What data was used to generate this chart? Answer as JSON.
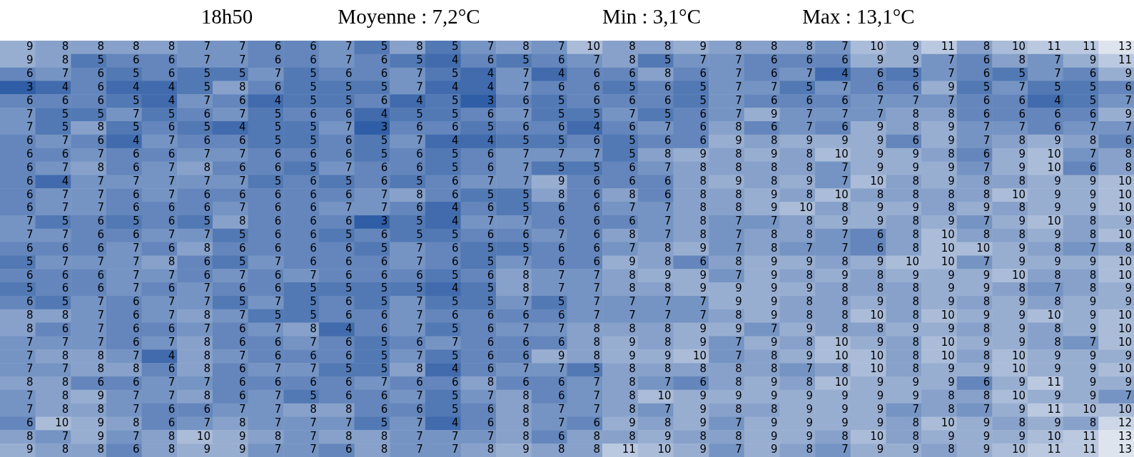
{
  "chart_data": {
    "type": "heatmap",
    "title": "18h50",
    "data_labels": true,
    "annotations": [
      "Moyenne : 7,2°C",
      "Min : 3,1°C",
      "Max : 13,1°C"
    ],
    "categories": [
      null,
      null,
      null,
      null,
      null,
      null,
      null,
      null,
      null,
      null,
      null,
      null,
      null,
      null,
      null,
      null,
      null,
      null,
      null,
      null,
      null,
      null,
      null,
      null,
      null,
      null,
      null,
      null,
      null,
      null,
      null,
      null
    ],
    "y_categories": [
      null,
      null,
      null,
      null,
      null,
      null,
      null,
      null,
      null,
      null,
      null,
      null,
      null,
      null,
      null,
      null,
      null,
      null,
      null,
      null,
      null,
      null,
      null,
      null,
      null,
      null,
      null,
      null,
      null,
      null,
      null
    ],
    "cells": [
      [
        9,
        8,
        8,
        8,
        8,
        7,
        7,
        6,
        6,
        7,
        5,
        8,
        5,
        7,
        8,
        7,
        10,
        8,
        8,
        9,
        8,
        8,
        8,
        7,
        10,
        9,
        11,
        8,
        10,
        11,
        11,
        13
      ],
      [
        9,
        8,
        5,
        6,
        6,
        7,
        7,
        6,
        6,
        7,
        6,
        5,
        4,
        6,
        5,
        6,
        7,
        8,
        5,
        7,
        7,
        6,
        6,
        6,
        9,
        9,
        7,
        6,
        8,
        7,
        9,
        11
      ],
      [
        6,
        7,
        6,
        5,
        6,
        5,
        5,
        7,
        5,
        6,
        6,
        7,
        5,
        4,
        7,
        4,
        6,
        6,
        8,
        6,
        7,
        6,
        7,
        4,
        6,
        5,
        7,
        6,
        5,
        7,
        6,
        9
      ],
      [
        3,
        4,
        6,
        4,
        4,
        5,
        8,
        6,
        5,
        5,
        5,
        7,
        4,
        4,
        7,
        6,
        6,
        5,
        6,
        5,
        7,
        7,
        5,
        7,
        6,
        6,
        9,
        5,
        7,
        5,
        5,
        6
      ],
      [
        6,
        6,
        6,
        5,
        4,
        7,
        6,
        4,
        5,
        5,
        6,
        4,
        5,
        3,
        6,
        5,
        6,
        6,
        6,
        5,
        7,
        6,
        6,
        6,
        7,
        7,
        7,
        6,
        6,
        4,
        5,
        7
      ],
      [
        7,
        5,
        5,
        7,
        5,
        6,
        7,
        5,
        6,
        6,
        4,
        5,
        5,
        6,
        7,
        5,
        5,
        7,
        5,
        6,
        7,
        9,
        7,
        7,
        7,
        8,
        8,
        6,
        6,
        6,
        6,
        9
      ],
      [
        7,
        5,
        8,
        5,
        6,
        5,
        4,
        5,
        5,
        7,
        3,
        6,
        6,
        5,
        6,
        6,
        4,
        6,
        7,
        6,
        8,
        6,
        7,
        6,
        9,
        8,
        9,
        7,
        7,
        6,
        7,
        7
      ],
      [
        6,
        7,
        6,
        4,
        7,
        6,
        6,
        5,
        5,
        6,
        5,
        7,
        4,
        4,
        5,
        5,
        6,
        5,
        6,
        6,
        9,
        8,
        9,
        9,
        9,
        6,
        9,
        7,
        8,
        9,
        8,
        6
      ],
      [
        6,
        6,
        7,
        6,
        6,
        7,
        7,
        6,
        6,
        6,
        5,
        6,
        5,
        6,
        7,
        7,
        7,
        5,
        8,
        9,
        8,
        9,
        8,
        10,
        9,
        9,
        8,
        6,
        9,
        10,
        7,
        8
      ],
      [
        6,
        7,
        8,
        6,
        7,
        8,
        6,
        6,
        5,
        7,
        6,
        6,
        5,
        6,
        7,
        5,
        5,
        6,
        7,
        8,
        8,
        8,
        8,
        7,
        9,
        9,
        9,
        7,
        9,
        10,
        6,
        8
      ],
      [
        6,
        4,
        7,
        7,
        7,
        7,
        7,
        5,
        6,
        5,
        6,
        5,
        6,
        7,
        7,
        9,
        6,
        6,
        6,
        8,
        9,
        8,
        9,
        7,
        10,
        8,
        9,
        8,
        8,
        9,
        9,
        10
      ],
      [
        6,
        7,
        7,
        6,
        7,
        6,
        6,
        6,
        6,
        6,
        7,
        8,
        6,
        5,
        5,
        8,
        6,
        8,
        6,
        8,
        8,
        9,
        8,
        10,
        8,
        8,
        8,
        8,
        10,
        9,
        9,
        10
      ],
      [
        6,
        7,
        7,
        6,
        6,
        6,
        7,
        6,
        6,
        7,
        7,
        6,
        4,
        6,
        5,
        6,
        6,
        7,
        7,
        8,
        8,
        9,
        10,
        8,
        9,
        9,
        8,
        9,
        8,
        9,
        9,
        10
      ],
      [
        7,
        5,
        6,
        5,
        6,
        5,
        8,
        6,
        6,
        6,
        3,
        5,
        4,
        7,
        7,
        6,
        6,
        6,
        7,
        8,
        7,
        7,
        8,
        9,
        9,
        8,
        9,
        7,
        9,
        10,
        8,
        9
      ],
      [
        7,
        7,
        6,
        6,
        7,
        7,
        5,
        6,
        6,
        5,
        6,
        5,
        5,
        6,
        6,
        7,
        6,
        8,
        7,
        8,
        7,
        8,
        8,
        7,
        6,
        8,
        10,
        8,
        8,
        9,
        8,
        10
      ],
      [
        6,
        6,
        6,
        7,
        6,
        8,
        6,
        6,
        6,
        6,
        5,
        7,
        6,
        5,
        5,
        6,
        6,
        7,
        8,
        9,
        7,
        8,
        7,
        7,
        6,
        8,
        10,
        10,
        9,
        8,
        7,
        8
      ],
      [
        5,
        7,
        7,
        7,
        8,
        6,
        5,
        7,
        6,
        6,
        6,
        7,
        6,
        5,
        7,
        6,
        6,
        9,
        8,
        6,
        8,
        9,
        9,
        8,
        9,
        10,
        10,
        7,
        9,
        9,
        9,
        10
      ],
      [
        6,
        6,
        6,
        7,
        7,
        6,
        7,
        6,
        7,
        6,
        6,
        6,
        5,
        6,
        8,
        7,
        7,
        8,
        9,
        9,
        7,
        9,
        8,
        9,
        8,
        9,
        9,
        9,
        10,
        8,
        8,
        10
      ],
      [
        5,
        6,
        6,
        7,
        6,
        7,
        6,
        6,
        5,
        5,
        5,
        5,
        4,
        5,
        8,
        7,
        7,
        8,
        8,
        9,
        9,
        9,
        9,
        8,
        8,
        8,
        9,
        9,
        8,
        7,
        8,
        9
      ],
      [
        6,
        5,
        7,
        6,
        7,
        7,
        5,
        7,
        5,
        6,
        5,
        7,
        5,
        5,
        7,
        5,
        7,
        7,
        7,
        7,
        9,
        9,
        8,
        8,
        9,
        8,
        9,
        8,
        9,
        8,
        9,
        9
      ],
      [
        8,
        8,
        7,
        6,
        7,
        8,
        7,
        5,
        5,
        6,
        6,
        7,
        6,
        6,
        6,
        6,
        7,
        7,
        7,
        7,
        8,
        9,
        8,
        8,
        10,
        8,
        10,
        9,
        9,
        10,
        9,
        10
      ],
      [
        8,
        6,
        7,
        6,
        6,
        7,
        6,
        7,
        8,
        4,
        6,
        7,
        5,
        6,
        7,
        7,
        8,
        8,
        8,
        9,
        9,
        7,
        9,
        8,
        8,
        9,
        9,
        8,
        9,
        8,
        9,
        10
      ],
      [
        7,
        7,
        7,
        6,
        7,
        8,
        6,
        6,
        7,
        6,
        5,
        6,
        7,
        6,
        6,
        6,
        8,
        9,
        8,
        9,
        7,
        9,
        8,
        10,
        9,
        8,
        10,
        9,
        9,
        8,
        7,
        10
      ],
      [
        7,
        8,
        8,
        7,
        4,
        8,
        7,
        6,
        6,
        6,
        5,
        7,
        5,
        6,
        6,
        9,
        8,
        9,
        9,
        10,
        7,
        8,
        9,
        10,
        10,
        8,
        10,
        8,
        10,
        9,
        9,
        9
      ],
      [
        7,
        7,
        8,
        8,
        6,
        8,
        6,
        7,
        7,
        5,
        5,
        8,
        4,
        6,
        7,
        7,
        5,
        8,
        8,
        8,
        8,
        8,
        7,
        8,
        10,
        8,
        9,
        9,
        10,
        9,
        9,
        10
      ],
      [
        8,
        8,
        6,
        6,
        7,
        7,
        6,
        6,
        6,
        6,
        7,
        6,
        6,
        8,
        6,
        6,
        7,
        8,
        7,
        6,
        8,
        9,
        8,
        10,
        9,
        9,
        9,
        6,
        9,
        11,
        9,
        9
      ],
      [
        7,
        8,
        9,
        7,
        7,
        8,
        6,
        7,
        5,
        6,
        6,
        7,
        5,
        7,
        8,
        6,
        7,
        8,
        10,
        9,
        9,
        9,
        9,
        9,
        9,
        9,
        8,
        8,
        10,
        9,
        9,
        7
      ],
      [
        7,
        8,
        8,
        7,
        6,
        6,
        7,
        7,
        8,
        8,
        6,
        6,
        5,
        6,
        8,
        7,
        7,
        8,
        7,
        9,
        8,
        8,
        9,
        9,
        9,
        7,
        8,
        7,
        9,
        11,
        10,
        10
      ],
      [
        6,
        10,
        9,
        8,
        6,
        7,
        8,
        7,
        7,
        7,
        5,
        7,
        4,
        6,
        8,
        7,
        6,
        9,
        8,
        9,
        7,
        9,
        9,
        9,
        9,
        8,
        10,
        9,
        8,
        9,
        8,
        12
      ],
      [
        8,
        7,
        9,
        7,
        8,
        10,
        9,
        8,
        7,
        8,
        8,
        7,
        7,
        7,
        8,
        6,
        8,
        8,
        9,
        8,
        8,
        9,
        9,
        8,
        10,
        8,
        9,
        9,
        9,
        10,
        11,
        13
      ],
      [
        9,
        8,
        8,
        6,
        8,
        9,
        9,
        7,
        7,
        6,
        8,
        7,
        7,
        8,
        9,
        8,
        8,
        11,
        10,
        9,
        7,
        9,
        8,
        7,
        9,
        9,
        8,
        9,
        10,
        11,
        11,
        13
      ]
    ]
  }
}
